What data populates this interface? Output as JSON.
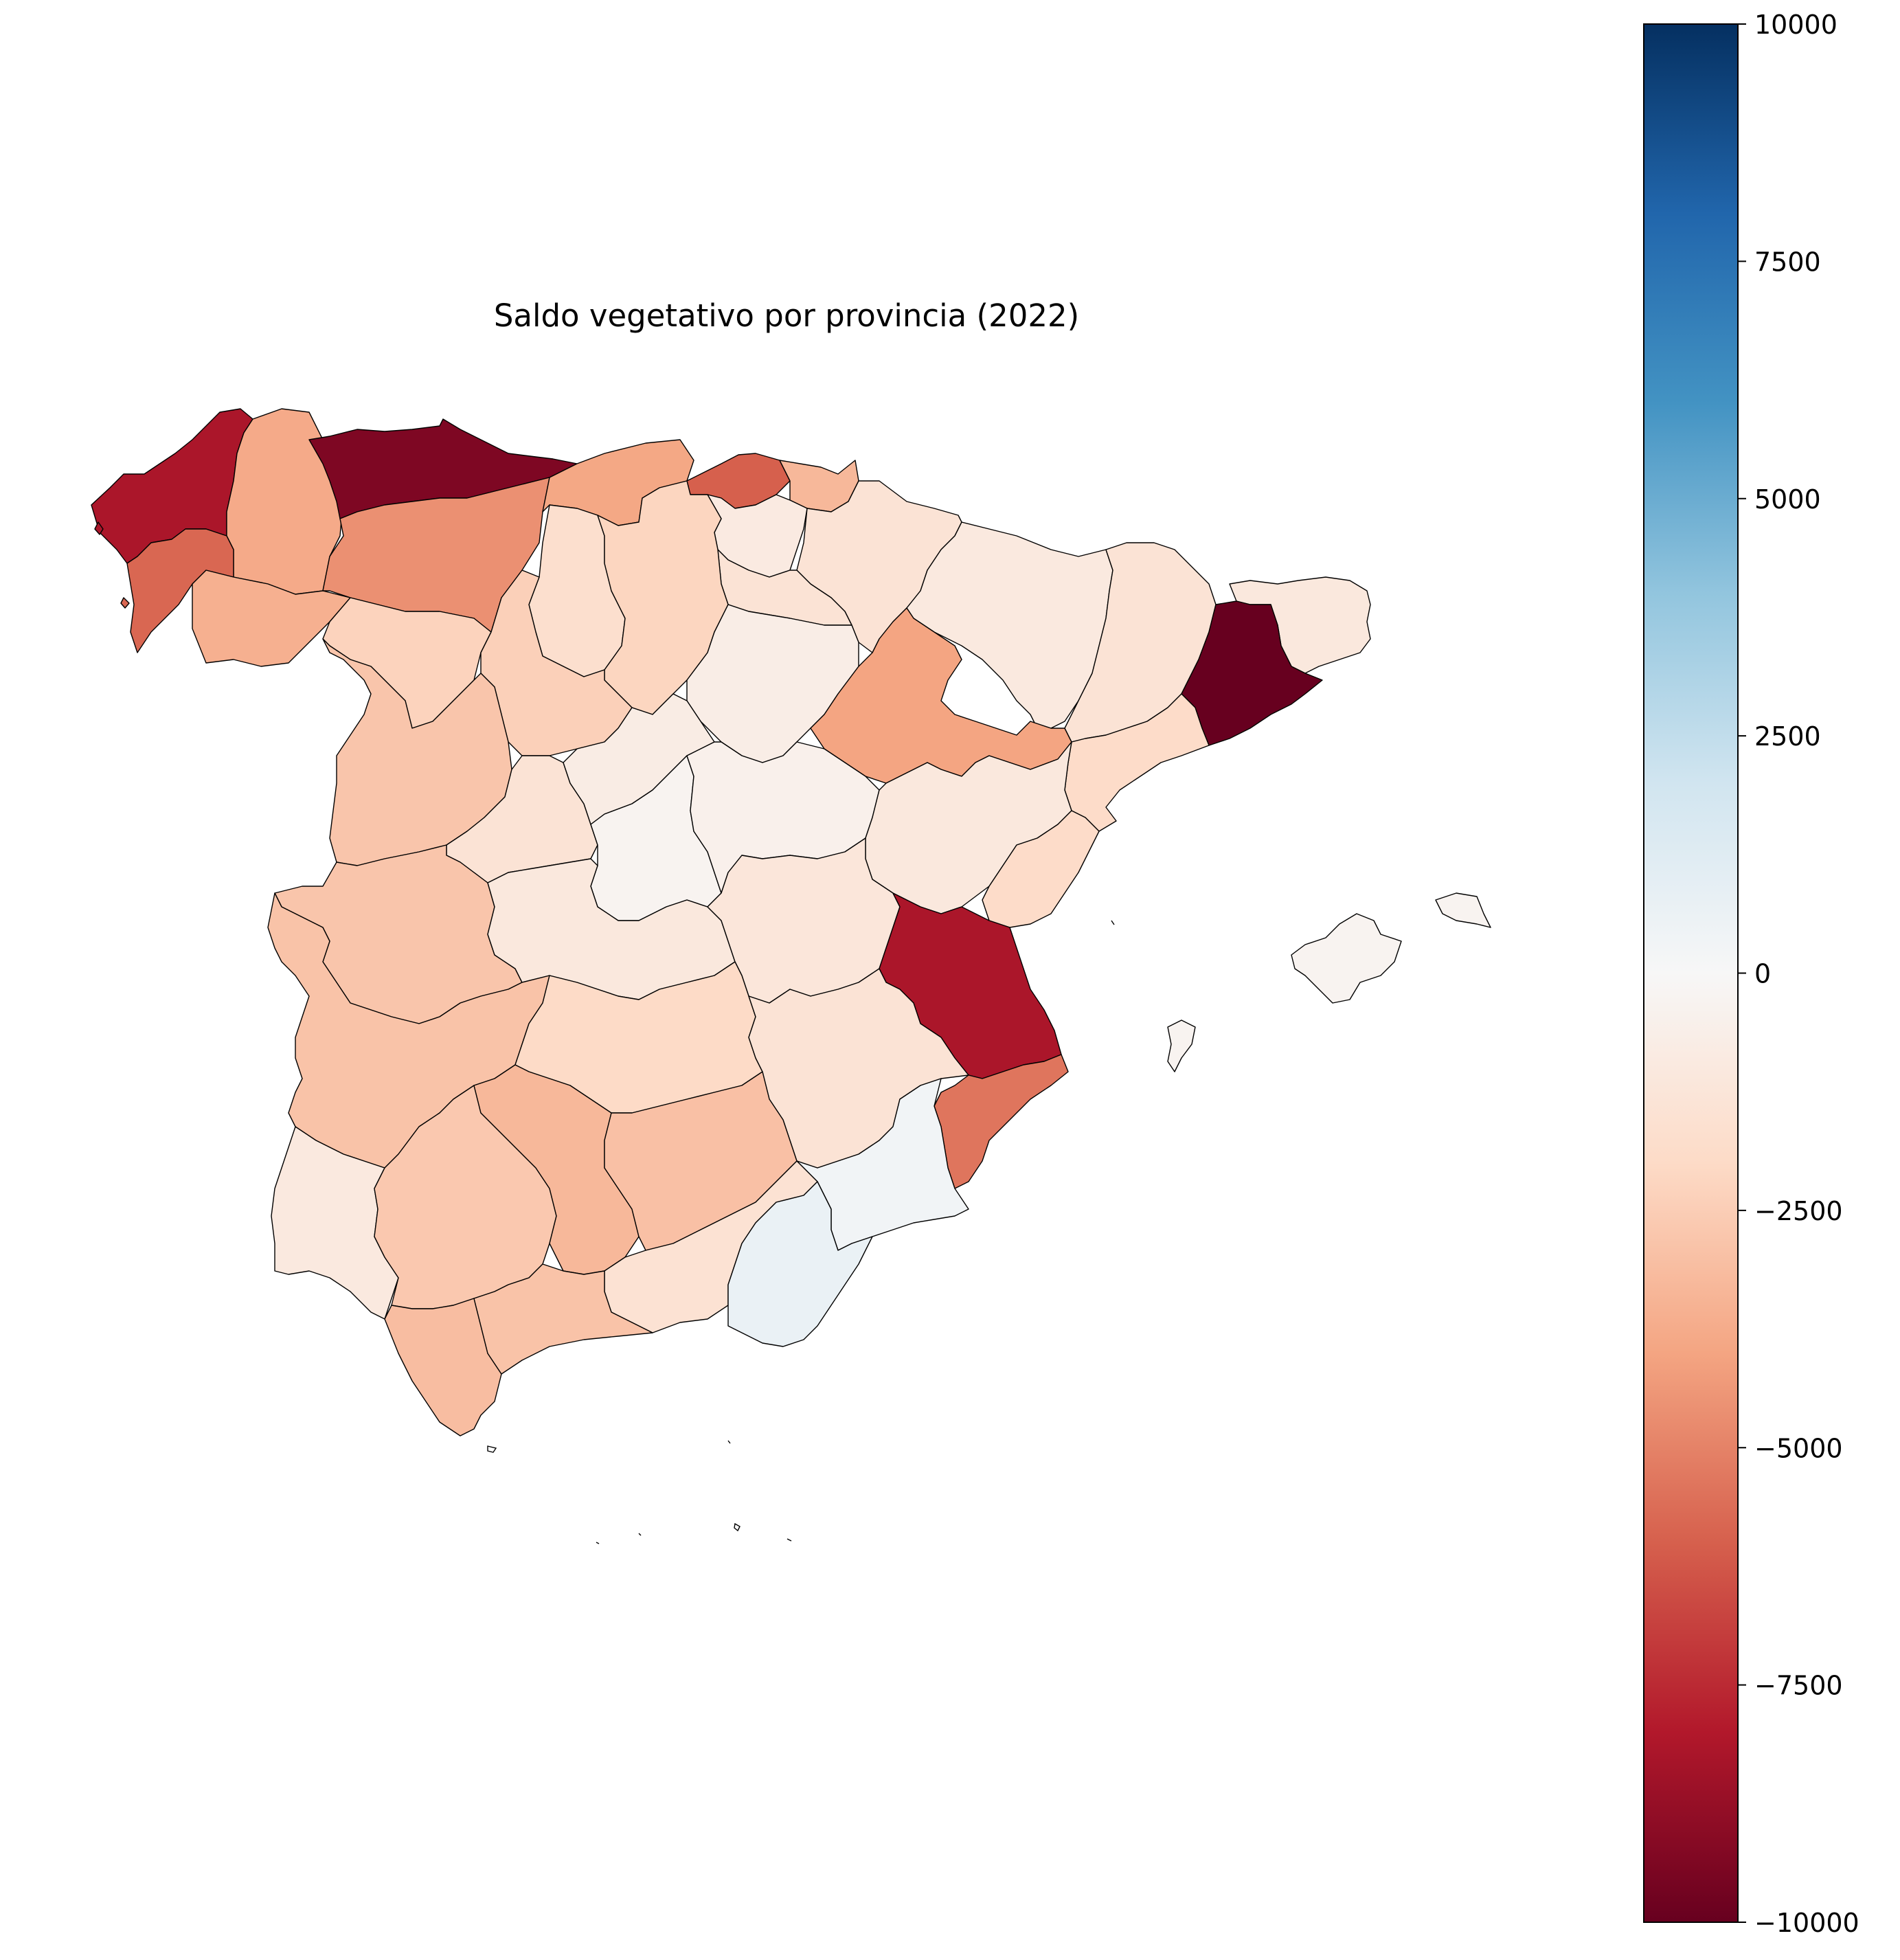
{
  "chart_data": {
    "type": "choropleth",
    "title": "Saldo vegetativo por provincia (2022)",
    "colormap": "RdBu",
    "colorbar": {
      "vmin": -10000,
      "vmax": 10000,
      "ticks": [
        10000,
        7500,
        5000,
        2500,
        0,
        -2500,
        -5000,
        -7500,
        -10000
      ],
      "tick_labels": [
        "10000",
        "7500",
        "5000",
        "2500",
        "0",
        "−2500",
        "−5000",
        "−7500",
        "−10000"
      ]
    },
    "regions": [
      {
        "name": "A Coruña",
        "value": -8200
      },
      {
        "name": "Lugo",
        "value": -3800
      },
      {
        "name": "Pontevedra",
        "value": -5800
      },
      {
        "name": "Ourense",
        "value": -3600
      },
      {
        "name": "Asturias",
        "value": -9400
      },
      {
        "name": "León",
        "value": -4600
      },
      {
        "name": "Cantabria",
        "value": -3900
      },
      {
        "name": "Bizkaia",
        "value": -6000
      },
      {
        "name": "Gipuzkoa",
        "value": -3300
      },
      {
        "name": "Araba",
        "value": -900
      },
      {
        "name": "Navarra",
        "value": -1400
      },
      {
        "name": "La Rioja",
        "value": -1400
      },
      {
        "name": "Palencia",
        "value": -1700
      },
      {
        "name": "Burgos",
        "value": -2200
      },
      {
        "name": "Zamora",
        "value": -2300
      },
      {
        "name": "Valladolid",
        "value": -2400
      },
      {
        "name": "Soria",
        "value": -700
      },
      {
        "name": "Huesca",
        "value": -1000
      },
      {
        "name": "Zaragoza",
        "value": -4000
      },
      {
        "name": "Lleida",
        "value": -1400
      },
      {
        "name": "Girona",
        "value": -1100
      },
      {
        "name": "Barcelona",
        "value": -10000
      },
      {
        "name": "Tarragona",
        "value": -1900
      },
      {
        "name": "Salamanca",
        "value": -2800
      },
      {
        "name": "Ávila",
        "value": -1400
      },
      {
        "name": "Segovia",
        "value": -800
      },
      {
        "name": "Madrid",
        "value": -300
      },
      {
        "name": "Guadalajara",
        "value": -500
      },
      {
        "name": "Teruel",
        "value": -1100
      },
      {
        "name": "Castellón",
        "value": -1900
      },
      {
        "name": "Cáceres",
        "value": -2800
      },
      {
        "name": "Toledo",
        "value": -1100
      },
      {
        "name": "Cuenca",
        "value": -1200
      },
      {
        "name": "Valencia",
        "value": -8200
      },
      {
        "name": "Badajoz",
        "value": -2900
      },
      {
        "name": "Ciudad Real",
        "value": -2000
      },
      {
        "name": "Albacete",
        "value": -1400
      },
      {
        "name": "Alicante",
        "value": -5400
      },
      {
        "name": "Murcia",
        "value": 300
      },
      {
        "name": "Huelva",
        "value": -1000
      },
      {
        "name": "Sevilla",
        "value": -2700
      },
      {
        "name": "Córdoba",
        "value": -3300
      },
      {
        "name": "Jaén",
        "value": -3000
      },
      {
        "name": "Granada",
        "value": -1500
      },
      {
        "name": "Almería",
        "value": 700
      },
      {
        "name": "Cádiz",
        "value": -3100
      },
      {
        "name": "Málaga",
        "value": -2900
      },
      {
        "name": "Illes Balears",
        "value": -300
      }
    ]
  }
}
